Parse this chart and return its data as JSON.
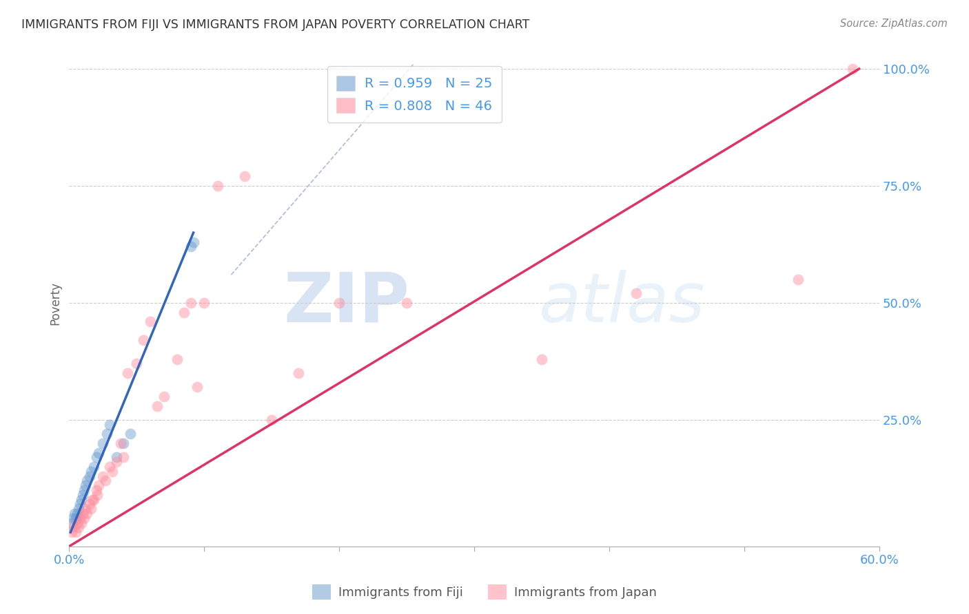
{
  "title": "IMMIGRANTS FROM FIJI VS IMMIGRANTS FROM JAPAN POVERTY CORRELATION CHART",
  "source": "Source: ZipAtlas.com",
  "ylabel_label": "Poverty",
  "xlim": [
    0.0,
    0.6
  ],
  "ylim": [
    -0.02,
    1.02
  ],
  "x_ticks": [
    0.0,
    0.1,
    0.2,
    0.3,
    0.4,
    0.5,
    0.6
  ],
  "x_tick_labels": [
    "0.0%",
    "",
    "",
    "",
    "",
    "",
    "60.0%"
  ],
  "y_ticks": [
    0.0,
    0.25,
    0.5,
    0.75,
    1.0
  ],
  "y_tick_labels": [
    "",
    "25.0%",
    "50.0%",
    "75.0%",
    "100.0%"
  ],
  "fiji_color": "#6699cc",
  "japan_color": "#ff8899",
  "fiji_R": 0.959,
  "fiji_N": 25,
  "japan_R": 0.808,
  "japan_N": 46,
  "watermark_zip": "ZIP",
  "watermark_atlas": "atlas",
  "fiji_scatter_x": [
    0.002,
    0.003,
    0.004,
    0.005,
    0.006,
    0.007,
    0.008,
    0.009,
    0.01,
    0.011,
    0.012,
    0.013,
    0.015,
    0.016,
    0.018,
    0.02,
    0.022,
    0.025,
    0.028,
    0.03,
    0.035,
    0.04,
    0.045,
    0.09,
    0.092
  ],
  "fiji_scatter_y": [
    0.03,
    0.04,
    0.05,
    0.04,
    0.05,
    0.06,
    0.07,
    0.08,
    0.09,
    0.1,
    0.11,
    0.12,
    0.13,
    0.14,
    0.15,
    0.17,
    0.18,
    0.2,
    0.22,
    0.24,
    0.17,
    0.2,
    0.22,
    0.62,
    0.63
  ],
  "japan_scatter_x": [
    0.002,
    0.003,
    0.005,
    0.006,
    0.007,
    0.008,
    0.009,
    0.01,
    0.011,
    0.012,
    0.013,
    0.015,
    0.016,
    0.017,
    0.018,
    0.02,
    0.021,
    0.022,
    0.025,
    0.027,
    0.03,
    0.032,
    0.035,
    0.038,
    0.04,
    0.043,
    0.05,
    0.055,
    0.06,
    0.065,
    0.07,
    0.08,
    0.085,
    0.09,
    0.095,
    0.1,
    0.11,
    0.13,
    0.15,
    0.17,
    0.2,
    0.25,
    0.35,
    0.42,
    0.54,
    0.58
  ],
  "japan_scatter_y": [
    0.01,
    0.02,
    0.01,
    0.03,
    0.02,
    0.04,
    0.03,
    0.05,
    0.04,
    0.06,
    0.05,
    0.07,
    0.06,
    0.08,
    0.08,
    0.1,
    0.09,
    0.11,
    0.13,
    0.12,
    0.15,
    0.14,
    0.16,
    0.2,
    0.17,
    0.35,
    0.37,
    0.42,
    0.46,
    0.28,
    0.3,
    0.38,
    0.48,
    0.5,
    0.32,
    0.5,
    0.75,
    0.77,
    0.25,
    0.35,
    0.5,
    0.5,
    0.38,
    0.52,
    0.55,
    1.0
  ],
  "fiji_line_x": [
    0.001,
    0.092
  ],
  "fiji_line_y": [
    0.01,
    0.65
  ],
  "japan_line_x": [
    0.0,
    0.585
  ],
  "japan_line_y": [
    -0.02,
    1.0
  ],
  "diag_line_x": [
    0.12,
    0.255
  ],
  "diag_line_y": [
    0.56,
    1.01
  ]
}
